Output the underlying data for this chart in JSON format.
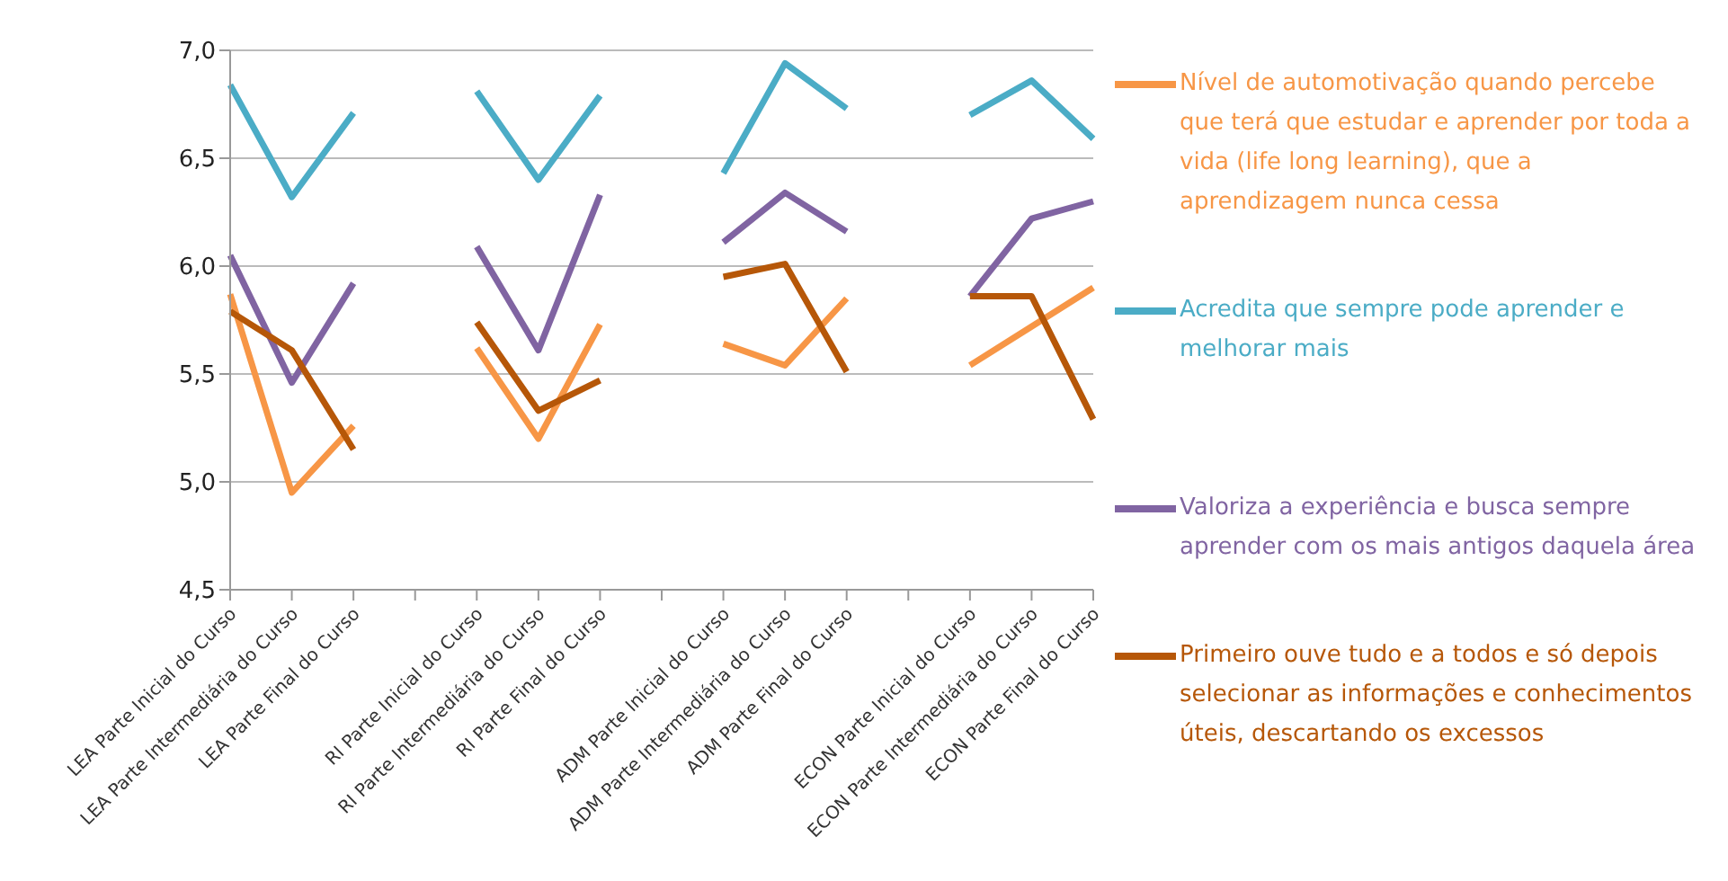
{
  "chart_data": {
    "type": "line",
    "categories": [
      "LEA Parte Inicial do Curso",
      "LEA Parte Intermediária do Curso",
      "LEA Parte Final do Curso",
      null,
      "RI Parte Inicial do Curso",
      "RI Parte Intermediária do Curso",
      "RI Parte Final do Curso",
      null,
      "ADM Parte Inicial do Curso",
      "ADM Parte Intermediária do Curso",
      "ADM Parte Final do Curso",
      null,
      "ECON Parte Inicial do Curso",
      "ECON Parte Intermediária do Curso",
      "ECON Parte Final do Curso"
    ],
    "series": [
      {
        "name": "Nível de automotivação quando percebe que terá que estudar e aprender por toda a vida (life long learning), que a aprendizagem nunca cessa",
        "color": "#f79646",
        "values": [
          5.87,
          4.95,
          5.26,
          null,
          5.62,
          5.2,
          5.73,
          null,
          5.64,
          5.54,
          5.85,
          null,
          5.54,
          5.72,
          5.9
        ]
      },
      {
        "name": "Acredita que sempre pode aprender e melhorar mais",
        "color": "#4bacc6",
        "values": [
          6.84,
          6.32,
          6.71,
          null,
          6.81,
          6.4,
          6.79,
          null,
          6.43,
          6.94,
          6.73,
          null,
          6.7,
          6.86,
          6.59
        ]
      },
      {
        "name": "Valoriza a experiência e busca sempre aprender com os mais antigos daquela área",
        "color": "#8064a2",
        "values": [
          6.05,
          5.46,
          5.92,
          null,
          6.09,
          5.61,
          6.33,
          null,
          6.11,
          6.34,
          6.16,
          null,
          5.86,
          6.22,
          6.3
        ]
      },
      {
        "name": "Primeiro ouve tudo e a todos e só depois  selecionar as informações e conhecimentos úteis, descartando os excessos",
        "color": "#b65708",
        "values": [
          5.79,
          5.61,
          5.15,
          null,
          5.74,
          5.33,
          5.47,
          null,
          5.95,
          6.01,
          5.51,
          null,
          5.86,
          5.86,
          5.29
        ]
      }
    ],
    "ylim": [
      4.5,
      7
    ],
    "yticks": [
      {
        "value": 4.5,
        "label": "4,5"
      },
      {
        "value": 5,
        "label": "5,0"
      },
      {
        "value": 5.5,
        "label": "5,5"
      },
      {
        "value": 6,
        "label": "6,0"
      },
      {
        "value": 6.5,
        "label": "6,5"
      },
      {
        "value": 7,
        "label": "7,0"
      }
    ],
    "grid": "y",
    "legend": "right",
    "marker": "none",
    "line_style": "solid"
  }
}
